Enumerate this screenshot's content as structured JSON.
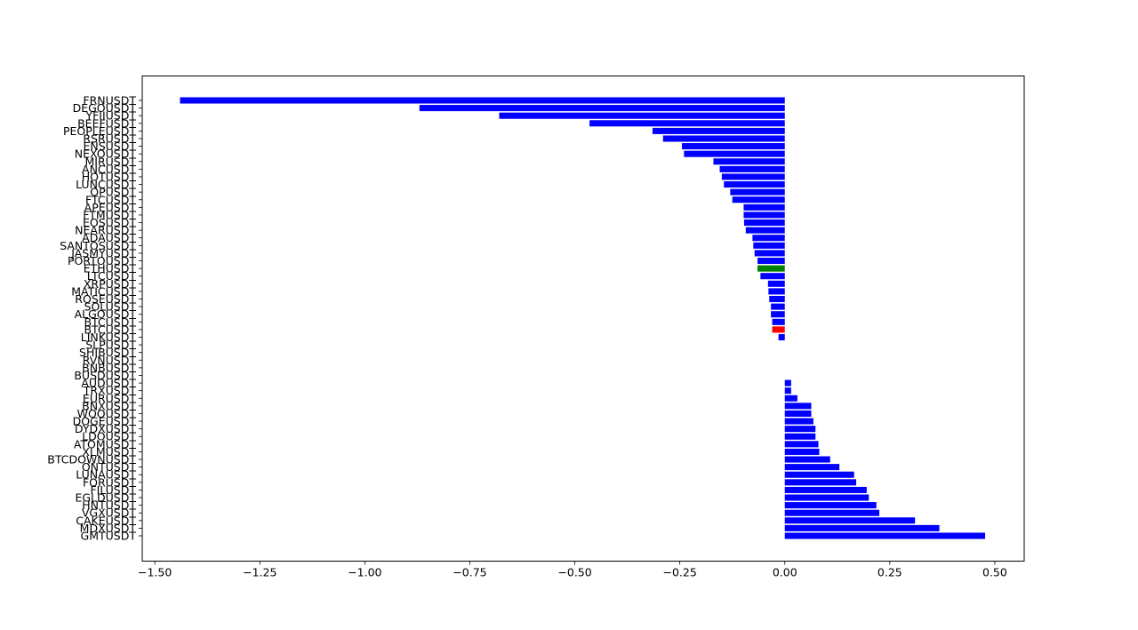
{
  "chart_data": {
    "type": "bar",
    "orientation": "horizontal",
    "title": "",
    "xlabel": "",
    "ylabel": "",
    "xlim": [
      -1.53,
      0.57
    ],
    "xticks": [
      -1.5,
      -1.25,
      -1.0,
      -0.75,
      -0.5,
      -0.25,
      0.0,
      0.25,
      0.5
    ],
    "xtick_labels": [
      "−1.50",
      "−1.25",
      "−1.00",
      "−0.75",
      "−0.50",
      "−0.25",
      "0.00",
      "0.25",
      "0.50"
    ],
    "grid": false,
    "legend": null,
    "default_color": "#0000ff",
    "categories": [
      "FRNUSDT",
      "DEGOUSDT",
      "YFIIUSDT",
      "BEEFUSDT",
      "PEOPLEUSDT",
      "RSRUSDT",
      "ENSUSDT",
      "NEXOUSDT",
      "MIRUSDT",
      "ANCUSDT",
      "HOTUSDT",
      "LUNCUSDT",
      "OPUSDT",
      "FTCUSDT",
      "APEUSDT",
      "FTMUSDT",
      "EOSUSDT",
      "NEARUSDT",
      "ADAUSDT",
      "SANTOSUSDT",
      "JASMYUSDT",
      "PORTOUSDT",
      "ETHUSDT",
      "LTCUSDT",
      "XRPUSDT",
      "MATICUSDT",
      "ROSEUSDT",
      "SOLUSDT",
      "ALGOUSDT",
      "BTCUSDT",
      "BTCUSDT",
      "LINKUSDT",
      "SLPUSDT",
      "SHIBUSDT",
      "RVNUSDT",
      "BNBUSDT",
      "BUSDUSDT",
      "AUDUSDT",
      "TRXUSDT",
      "EURUSDT",
      "BNXUSDT",
      "WOOUSDT",
      "DOGEUSDT",
      "DYDXUSDT",
      "LDOUSDT",
      "ATOMUSDT",
      "XLMUSDT",
      "BTCDOWNUSDT",
      "ONTUSDT",
      "LUNAUSDT",
      "FORUSDT",
      "FILUSDT",
      "EGLDUSDT",
      "HNTUSDT",
      "VGXUSDT",
      "CAKEUSDT",
      "MDXUSDT",
      "GMTUSDT"
    ],
    "values": [
      -1.44,
      -0.87,
      -0.68,
      -0.465,
      -0.315,
      -0.29,
      -0.245,
      -0.24,
      -0.17,
      -0.155,
      -0.15,
      -0.145,
      -0.13,
      -0.125,
      -0.098,
      -0.098,
      -0.097,
      -0.093,
      -0.077,
      -0.075,
      -0.072,
      -0.065,
      -0.065,
      -0.058,
      -0.04,
      -0.039,
      -0.037,
      -0.033,
      -0.033,
      -0.03,
      -0.03,
      -0.015,
      0.0,
      0.0,
      0.0,
      0.0,
      0.0,
      0.015,
      0.015,
      0.03,
      0.063,
      0.063,
      0.068,
      0.073,
      0.073,
      0.08,
      0.082,
      0.108,
      0.13,
      0.165,
      0.17,
      0.195,
      0.2,
      0.218,
      0.225,
      0.31,
      0.368,
      0.477
    ],
    "highlight_colors": {
      "22": "#008000",
      "30": "#ff0000"
    }
  }
}
